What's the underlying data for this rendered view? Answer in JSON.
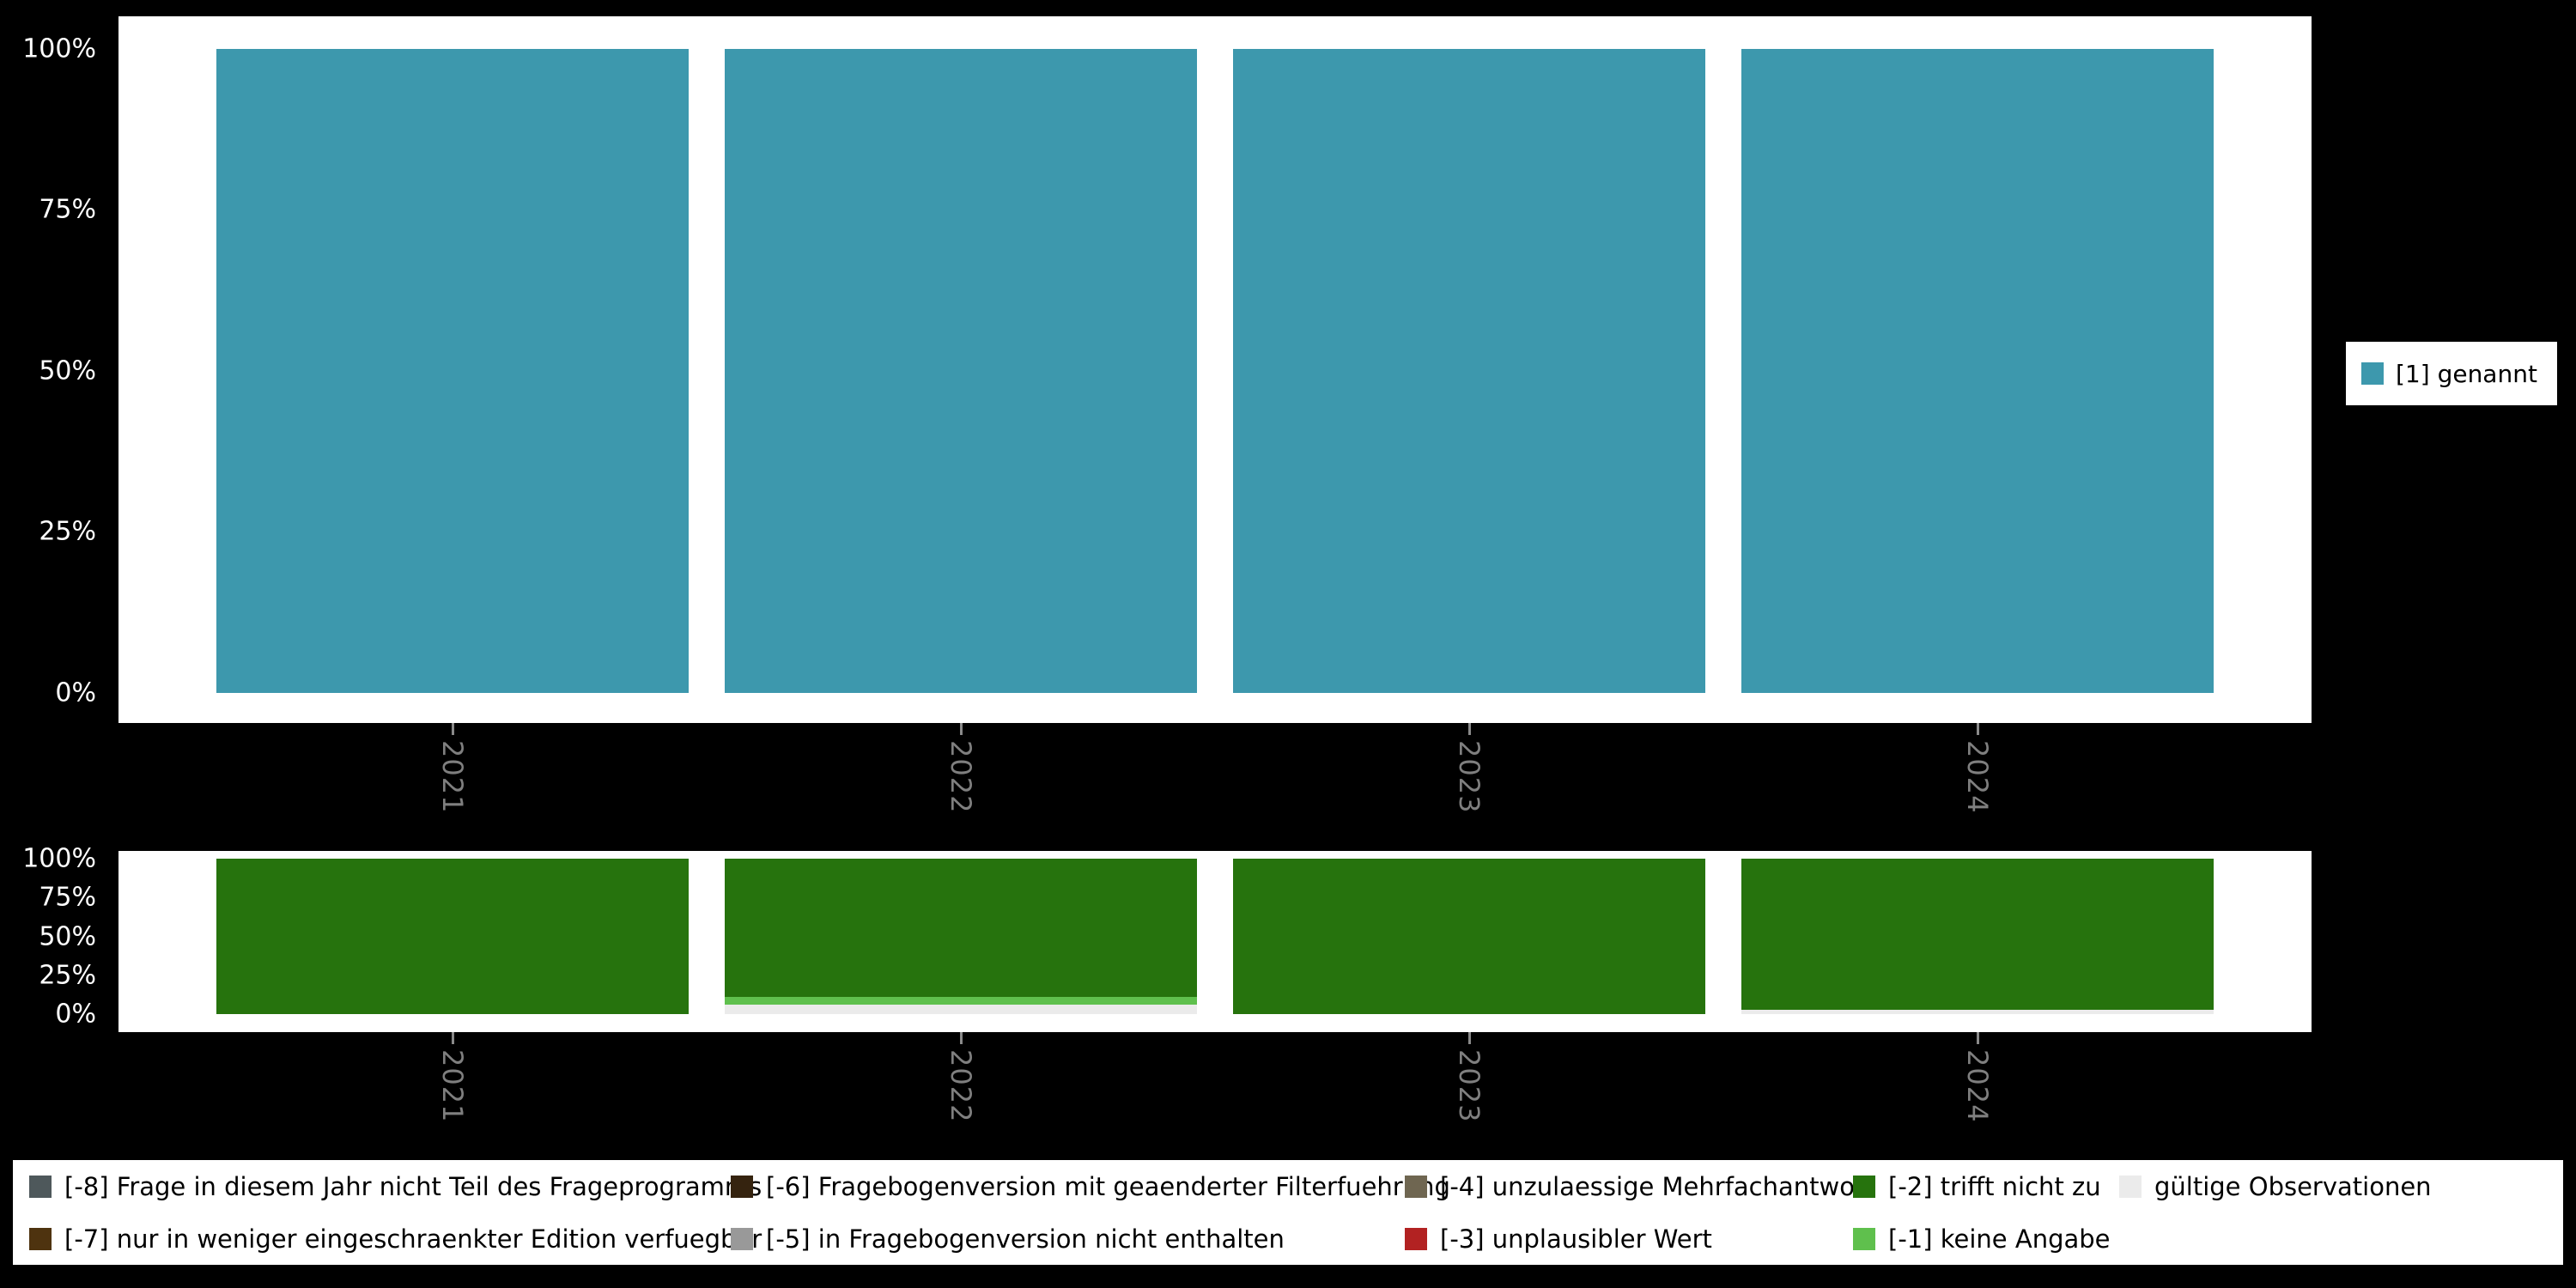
{
  "figure": {
    "background": "#000000",
    "panel_color": "#ffffff",
    "y_axis_text_color": "#ffffff",
    "x_axis_text_color": "#7f7f7f",
    "tick_color": "#8a8a8a"
  },
  "chart_data": [
    {
      "type": "bar",
      "stacked": true,
      "orientation": "vertical",
      "categories": [
        "2021",
        "2022",
        "2023",
        "2024"
      ],
      "yticks": [
        "0%",
        "25%",
        "50%",
        "75%",
        "100%"
      ],
      "ylim": [
        0,
        100
      ],
      "unit": "%",
      "grid": false,
      "legend_position": "right",
      "stack_order": "first series at bottom",
      "series": [
        {
          "name": "[1] genannt",
          "color": "#3d98ad",
          "values": [
            100,
            100,
            100,
            100
          ]
        }
      ]
    },
    {
      "type": "bar",
      "stacked": true,
      "orientation": "vertical",
      "categories": [
        "2021",
        "2022",
        "2023",
        "2024"
      ],
      "yticks": [
        "0%",
        "25%",
        "50%",
        "75%",
        "100%"
      ],
      "ylim": [
        0,
        100
      ],
      "unit": "%",
      "grid": false,
      "legend_position": "bottom",
      "stack_order": "first series at bottom",
      "series": [
        {
          "name": "gültige Observationen",
          "color": "#ebebeb",
          "values": [
            0,
            6,
            0,
            3
          ]
        },
        {
          "name": "[-1] keine Angabe",
          "color": "#5fc04d",
          "values": [
            0,
            5,
            0,
            0
          ]
        },
        {
          "name": "[-2] trifft nicht zu",
          "color": "#26730d",
          "values": [
            100,
            89,
            100,
            97
          ]
        }
      ],
      "legend_items": [
        {
          "label": "[-8] Frage in diesem Jahr nicht Teil des Frageprogramms",
          "color": "#4e585b"
        },
        {
          "label": "[-7] nur in weniger eingeschraenkter Edition verfuegbar",
          "color": "#4e330f"
        },
        {
          "label": "[-6] Fragebogenversion mit geaenderter Filterfuehrung",
          "color": "#35230f"
        },
        {
          "label": "[-5] in Fragebogenversion nicht enthalten",
          "color": "#999999"
        },
        {
          "label": "[-4] unzulaessige Mehrfachantwort",
          "color": "#6f6651"
        },
        {
          "label": "[-3] unplausibler Wert",
          "color": "#b22222"
        },
        {
          "label": "[-2] trifft nicht zu",
          "color": "#26730d"
        },
        {
          "label": "[-1] keine Angabe",
          "color": "#5fc04d"
        },
        {
          "label": "gültige Observationen",
          "color": "#ebebeb"
        }
      ]
    }
  ]
}
